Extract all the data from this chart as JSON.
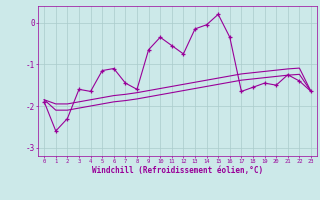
{
  "xlabel": "Windchill (Refroidissement éolien,°C)",
  "background_color": "#cce9e9",
  "line_color": "#990099",
  "grid_color": "#aacccc",
  "x_values": [
    0,
    1,
    2,
    3,
    4,
    5,
    6,
    7,
    8,
    9,
    10,
    11,
    12,
    13,
    14,
    15,
    16,
    17,
    18,
    19,
    20,
    21,
    22,
    23
  ],
  "y_jagged": [
    -1.9,
    -2.6,
    -2.3,
    -1.6,
    -1.65,
    -1.15,
    -1.1,
    -1.45,
    -1.6,
    -0.65,
    -0.35,
    -0.55,
    -0.75,
    -0.15,
    -0.05,
    0.2,
    -0.35,
    -1.65,
    -1.55,
    -1.45,
    -1.5,
    -1.25,
    -1.4,
    -1.65
  ],
  "y_smooth1": [
    -1.85,
    -1.95,
    -1.95,
    -1.9,
    -1.85,
    -1.8,
    -1.75,
    -1.72,
    -1.68,
    -1.63,
    -1.58,
    -1.53,
    -1.48,
    -1.43,
    -1.38,
    -1.33,
    -1.28,
    -1.23,
    -1.2,
    -1.17,
    -1.14,
    -1.11,
    -1.09,
    -1.65
  ],
  "y_smooth2": [
    -1.85,
    -2.1,
    -2.1,
    -2.05,
    -2.0,
    -1.95,
    -1.9,
    -1.87,
    -1.83,
    -1.78,
    -1.73,
    -1.68,
    -1.63,
    -1.58,
    -1.53,
    -1.48,
    -1.43,
    -1.38,
    -1.35,
    -1.32,
    -1.29,
    -1.26,
    -1.24,
    -1.65
  ],
  "ylim": [
    -3.2,
    0.4
  ],
  "yticks": [
    0,
    -1,
    -2,
    -3
  ],
  "figsize": [
    3.2,
    2.0
  ],
  "dpi": 100
}
